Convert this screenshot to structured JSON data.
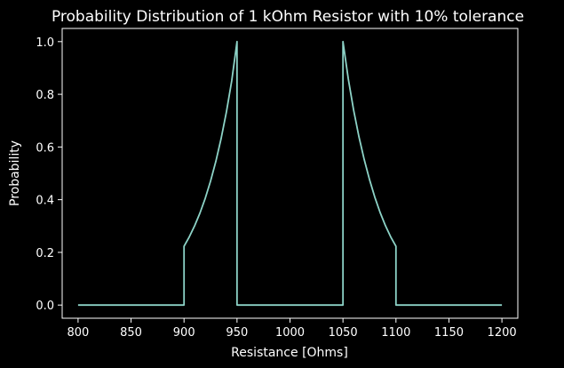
{
  "chart_data": {
    "type": "line",
    "title": "Probability Distribution of 1 kOhm Resistor with 10% tolerance",
    "xlabel": "Resistance [Ohms]",
    "ylabel": "Probability",
    "xlim": [
      785,
      1215
    ],
    "ylim": [
      -0.05,
      1.05
    ],
    "xticks": [
      800,
      850,
      900,
      950,
      1000,
      1050,
      1100,
      1150,
      1200
    ],
    "xtick_labels": [
      "800",
      "850",
      "900",
      "950",
      "1000",
      "1050",
      "1100",
      "1150",
      "1200"
    ],
    "yticks": [
      0.0,
      0.2,
      0.4,
      0.6,
      0.8,
      1.0
    ],
    "ytick_labels": [
      "0.0",
      "0.2",
      "0.4",
      "0.6",
      "0.8",
      "1.0"
    ],
    "grid": false,
    "series": [
      {
        "color": "#8dd3c7",
        "x": [
          800,
          900,
          900,
          905,
          910,
          915,
          920,
          925,
          930,
          935,
          940,
          945,
          950,
          950,
          1050,
          1050,
          1055,
          1060,
          1065,
          1070,
          1075,
          1080,
          1085,
          1090,
          1095,
          1100,
          1100,
          1200
        ],
        "y": [
          0.0,
          0.0,
          0.223,
          0.259,
          0.301,
          0.349,
          0.405,
          0.47,
          0.545,
          0.632,
          0.733,
          0.851,
          1.0,
          0.0,
          0.0,
          1.0,
          0.859,
          0.741,
          0.64,
          0.553,
          0.477,
          0.41,
          0.352,
          0.302,
          0.259,
          0.223,
          0.0,
          0.0
        ]
      }
    ]
  }
}
